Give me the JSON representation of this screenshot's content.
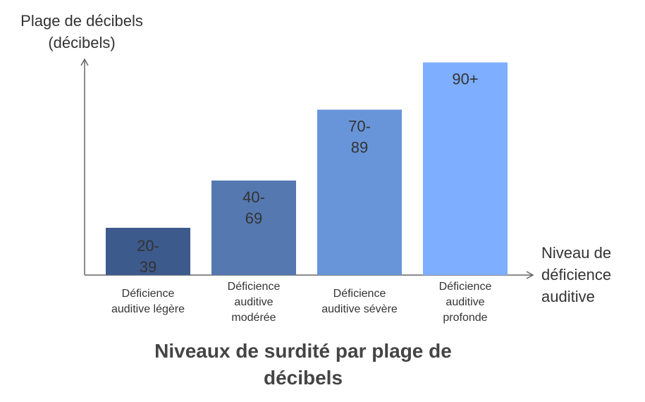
{
  "chart_data": {
    "type": "bar",
    "title": "Niveaux de surdité par plage de décibels",
    "title_lines": [
      "Niveaux de surdité par plage de",
      "décibels"
    ],
    "ylabel_lines": [
      "Plage de décibels",
      "(décibels)"
    ],
    "xlabel_lines": [
      "Niveau de",
      "déficience",
      "auditive"
    ],
    "categories": [
      [
        "Déficience",
        "auditive légère"
      ],
      [
        "Déficience",
        "auditive",
        "modérée"
      ],
      [
        "Déficience",
        "auditive sévère"
      ],
      [
        "Déficience",
        "auditive",
        "profonde"
      ]
    ],
    "values": [
      20,
      40,
      70,
      90
    ],
    "data_labels": [
      [
        "20-",
        "39"
      ],
      [
        "40-",
        "69"
      ],
      [
        "70-",
        "89"
      ],
      [
        "90+"
      ]
    ],
    "colors": [
      "#3d5a8c",
      "#5578b1",
      "#6895d9",
      "#7eaeff"
    ],
    "ylim": [
      0,
      95
    ],
    "grid": false,
    "legend": "none"
  }
}
